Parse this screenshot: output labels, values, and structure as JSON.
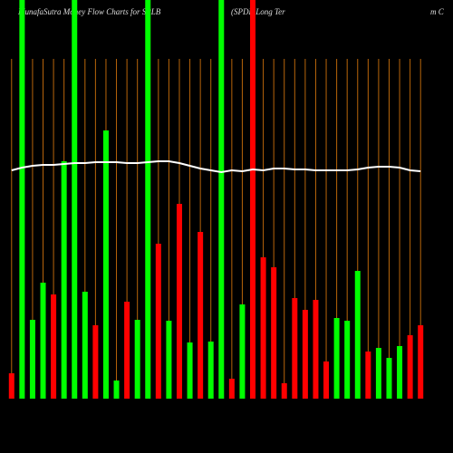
{
  "chart_data": {
    "type": "bar",
    "title": "MunafaSutra  Money Flow  Charts for SPLB",
    "subtitle": "(SPDR Long Ter",
    "subtitle_tail": "m C",
    "ylim": [
      0,
      440
    ],
    "values": [
      28,
      440,
      87,
      128,
      115,
      262,
      440,
      118,
      81,
      296,
      20,
      107,
      87,
      440,
      171,
      86,
      215,
      62,
      184,
      63,
      440,
      22,
      104,
      440,
      156,
      145,
      17,
      111,
      98,
      109,
      41,
      89,
      86,
      141,
      52,
      56,
      45,
      58,
      70,
      81
    ],
    "colors": [
      "#ff0000",
      "#00ff00",
      "#00ff00",
      "#00ff00",
      "#ff0000",
      "#00ff00",
      "#00ff00",
      "#00ff00",
      "#ff0000",
      "#00ff00",
      "#00ff00",
      "#ff0000",
      "#00ff00",
      "#00ff00",
      "#ff0000",
      "#00ff00",
      "#ff0000",
      "#00ff00",
      "#ff0000",
      "#00ff00",
      "#00ff00",
      "#ff0000",
      "#00ff00",
      "#ff0000",
      "#ff0000",
      "#ff0000",
      "#ff0000",
      "#ff0000",
      "#ff0000",
      "#ff0000",
      "#ff0000",
      "#00ff00",
      "#00ff00",
      "#00ff00",
      "#ff0000",
      "#00ff00",
      "#00ff00",
      "#00ff00",
      "#ff0000",
      "#ff0000"
    ],
    "line": {
      "color": "#ffffff",
      "values": [
        252,
        255,
        257,
        258,
        258,
        259,
        260,
        260,
        261,
        261,
        261,
        260,
        260,
        261,
        262,
        262,
        260,
        257,
        254,
        252,
        250,
        252,
        251,
        253,
        252,
        254,
        254,
        253,
        253,
        252,
        252,
        252,
        252,
        253,
        255,
        256,
        256,
        255,
        252,
        251
      ]
    },
    "grid_color": "#b8650a"
  }
}
